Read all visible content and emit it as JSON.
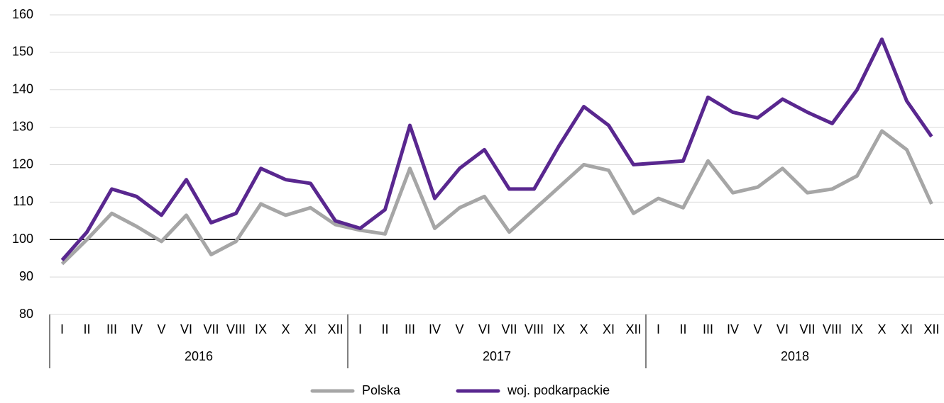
{
  "chart_data": {
    "type": "line",
    "categories": [
      "I",
      "II",
      "III",
      "IV",
      "V",
      "VI",
      "VII",
      "VIII",
      "IX",
      "X",
      "XI",
      "XII",
      "I",
      "II",
      "III",
      "IV",
      "V",
      "VI",
      "VII",
      "VIII",
      "IX",
      "X",
      "XI",
      "XII",
      "I",
      "II",
      "III",
      "IV",
      "V",
      "VI",
      "VII",
      "VIII",
      "IX",
      "X",
      "XI",
      "XII"
    ],
    "groups": [
      "2016",
      "2017",
      "2018"
    ],
    "series": [
      {
        "name": "Polska",
        "color": "#a6a6a6",
        "values": [
          93.5,
          100,
          107,
          103.5,
          99.5,
          106.5,
          96,
          99.5,
          109.5,
          106.5,
          108.5,
          104,
          102.5,
          101.5,
          119,
          103,
          108.5,
          111.5,
          102,
          108,
          114,
          120,
          118.5,
          107,
          111,
          108.5,
          121,
          112.5,
          114,
          119,
          112.5,
          113.5,
          117,
          129,
          124,
          109.5
        ]
      },
      {
        "name": "woj. podkarpackie",
        "color": "#59278f",
        "values": [
          94.5,
          102,
          113.5,
          111.5,
          106.5,
          116,
          104.5,
          107,
          119,
          116,
          115,
          105,
          103,
          108,
          130.5,
          111,
          119,
          124,
          113.5,
          113.5,
          125,
          135.5,
          130.5,
          120,
          120.5,
          121,
          138,
          134,
          132.5,
          137.5,
          134,
          131,
          140,
          153.5,
          137,
          127.5
        ]
      }
    ],
    "ylim": [
      80,
      160
    ],
    "yticks": [
      80,
      90,
      100,
      110,
      120,
      130,
      140,
      150,
      160
    ],
    "grid": true,
    "reference_line": 100,
    "legend": "bottom"
  }
}
